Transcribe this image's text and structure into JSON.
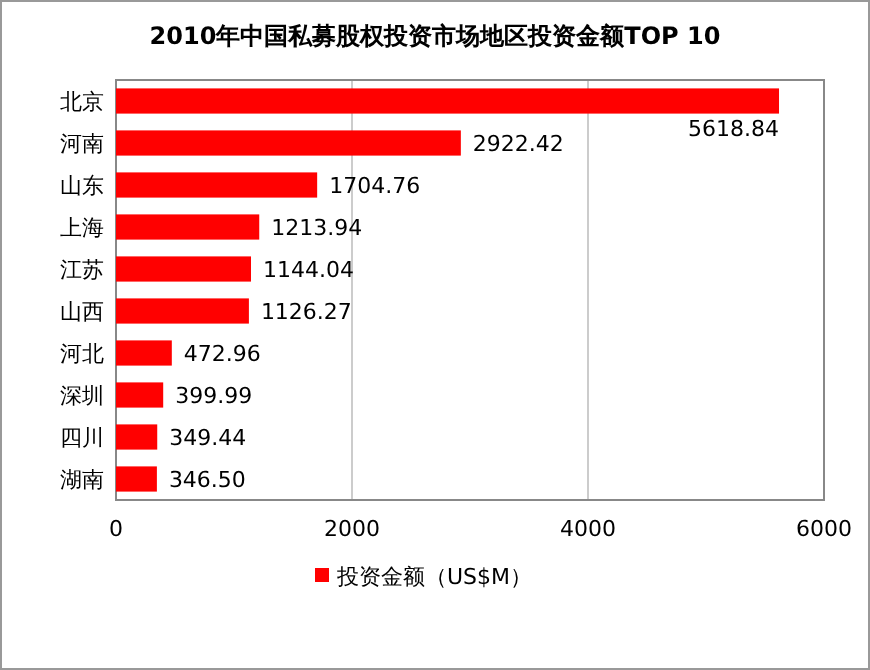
{
  "chart_data": {
    "type": "bar",
    "orientation": "horizontal",
    "title": "2010年中国私募股权投资市场地区投资金额TOP 10",
    "categories": [
      "北京",
      "河南",
      "山东",
      "上海",
      "江苏",
      "山西",
      "河北",
      "深圳",
      "四川",
      "湖南"
    ],
    "series": [
      {
        "name": "投资金额（US$M）",
        "color": "#ff0000",
        "values": [
          5618.84,
          2922.42,
          1704.76,
          1213.94,
          1144.04,
          1126.27,
          472.96,
          399.99,
          349.44,
          346.5
        ],
        "value_labels": [
          "5618.84",
          "2922.42",
          "1704.76",
          "1213.94",
          "1144.04",
          "1126.27",
          "472.96",
          "399.99",
          "349.44",
          "346.50"
        ]
      }
    ],
    "xlim": [
      0,
      6000
    ],
    "xticks": [
      0,
      2000,
      4000,
      6000
    ],
    "grid": "x",
    "legend": "bottom"
  }
}
